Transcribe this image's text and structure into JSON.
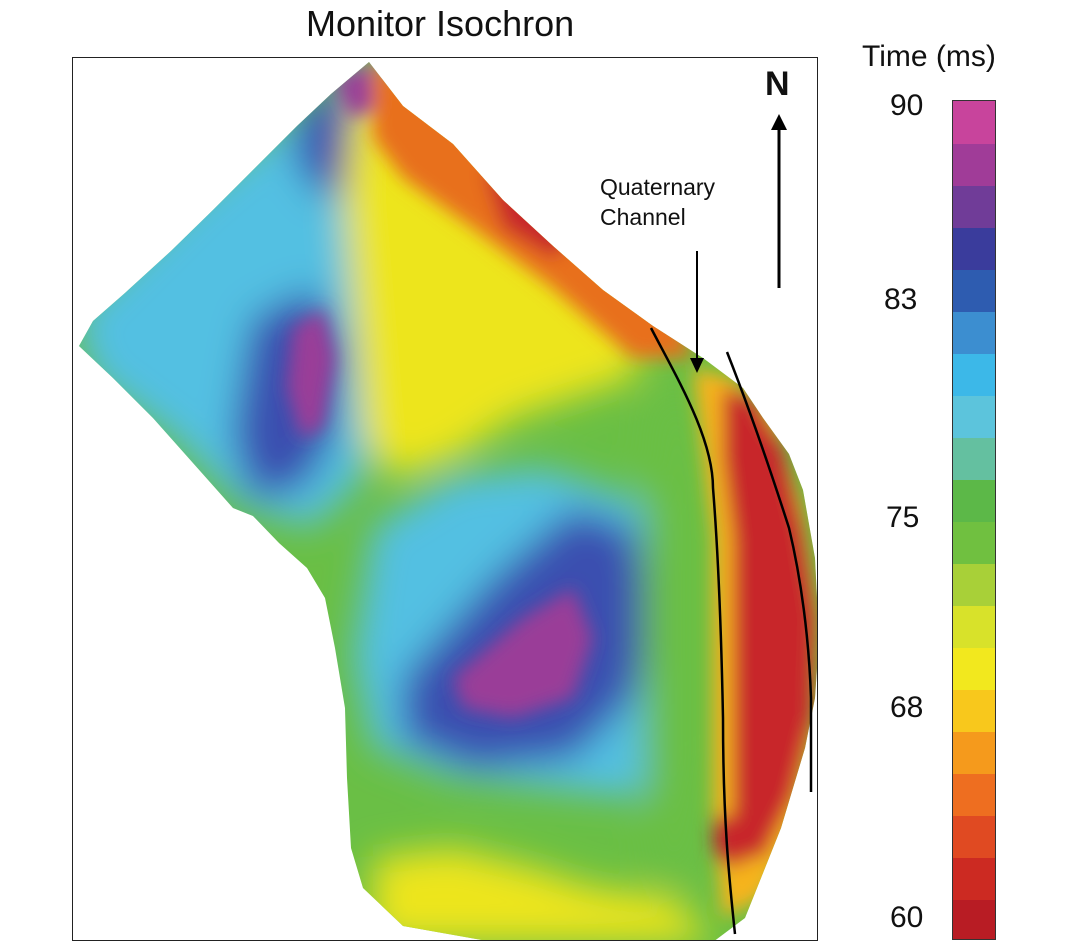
{
  "title": "Monitor Isochron",
  "north_label": "N",
  "annotation": {
    "line1": "Quaternary",
    "line2": "Channel"
  },
  "colorbar": {
    "title": "Time (ms)",
    "ticks": [
      "90",
      "83",
      "75",
      "68",
      "60"
    ],
    "min": 60,
    "max": 90,
    "colors": [
      "#b81c24",
      "#cc2a22",
      "#e04a22",
      "#ee6e20",
      "#f59a1c",
      "#f8c81c",
      "#f2e81e",
      "#d8e22a",
      "#a8d038",
      "#70c040",
      "#5cb848",
      "#64c0a0",
      "#5cc4dc",
      "#3cb8e8",
      "#3c8ed0",
      "#2e5cb0",
      "#3a3c9c",
      "#703c98",
      "#a03c98",
      "#c8449c"
    ]
  },
  "map_colors": {
    "red": "#c8282a",
    "orange": "#e8701e",
    "yellow_orange": "#f6b41c",
    "yellow": "#ede51e",
    "green": "#6abf45",
    "cyan": "#52c0e2",
    "blue": "#3a50b0",
    "purple": "#9a3c98"
  }
}
